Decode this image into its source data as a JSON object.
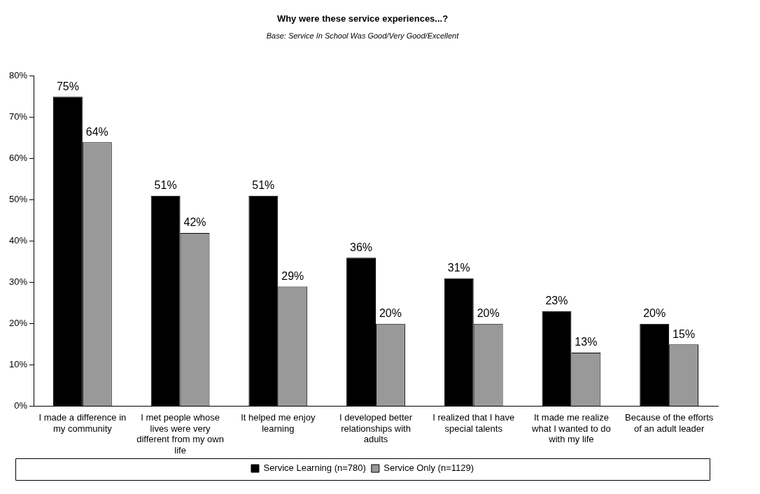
{
  "chart_data": {
    "type": "bar",
    "title": "Why were these service experiences...?",
    "subtitle": "Base: Service In School Was Good/Very Good/Excellent",
    "categories": [
      "I made a difference in my community",
      "I met people whose lives were very different from my own life",
      "It helped me enjoy learning",
      "I developed better relationships with adults",
      "I realized that I have special talents",
      "It made me realize what I wanted to do with my life",
      "Because of the efforts of an adult leader"
    ],
    "series": [
      {
        "name": "Service Learning (n=780)",
        "color": "#000000",
        "values": [
          75,
          51,
          51,
          36,
          31,
          23,
          20
        ],
        "value_labels": [
          "75%",
          "51%",
          "51%",
          "36%",
          "31%",
          "23%",
          "20%"
        ]
      },
      {
        "name": "Service Only (n=1129)",
        "color": "#999999",
        "values": [
          64,
          42,
          29,
          20,
          20,
          13,
          15
        ],
        "value_labels": [
          "64%",
          "42%",
          "29%",
          "20%",
          "20%",
          "13%",
          "15%"
        ]
      }
    ],
    "ylim": [
      0,
      80
    ],
    "yticks": [
      {
        "value": 0,
        "label": "0%"
      },
      {
        "value": 10,
        "label": "10%"
      },
      {
        "value": 20,
        "label": "20%"
      },
      {
        "value": 30,
        "label": "30%"
      },
      {
        "value": 40,
        "label": "40%"
      },
      {
        "value": 50,
        "label": "50%"
      },
      {
        "value": 60,
        "label": "60%"
      },
      {
        "value": 70,
        "label": "70%"
      },
      {
        "value": 80,
        "label": "80%"
      }
    ],
    "grid": false,
    "legend": "bottom"
  }
}
